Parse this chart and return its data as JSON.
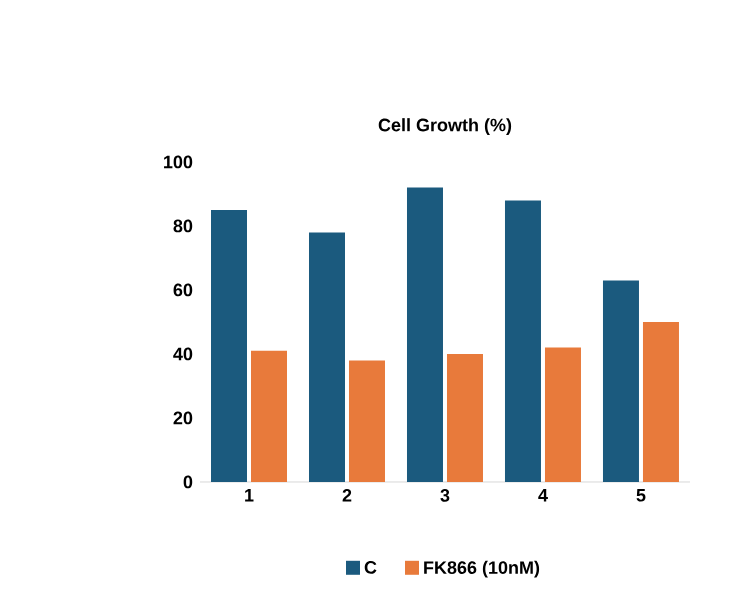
{
  "chart_data": {
    "type": "bar",
    "title": "Cell Growth (%)",
    "categories": [
      "1",
      "2",
      "3",
      "4",
      "5"
    ],
    "series": [
      {
        "name": "C",
        "color": "#1b5a7e",
        "values": [
          85,
          78,
          92,
          88,
          63
        ]
      },
      {
        "name": "FK866 (10nM)",
        "color": "#e87a3b",
        "values": [
          41,
          38,
          40,
          42,
          50
        ]
      }
    ],
    "ylim": [
      0,
      100
    ],
    "yticks": [
      0,
      20,
      40,
      60,
      80,
      100
    ],
    "legend": "bottom"
  }
}
